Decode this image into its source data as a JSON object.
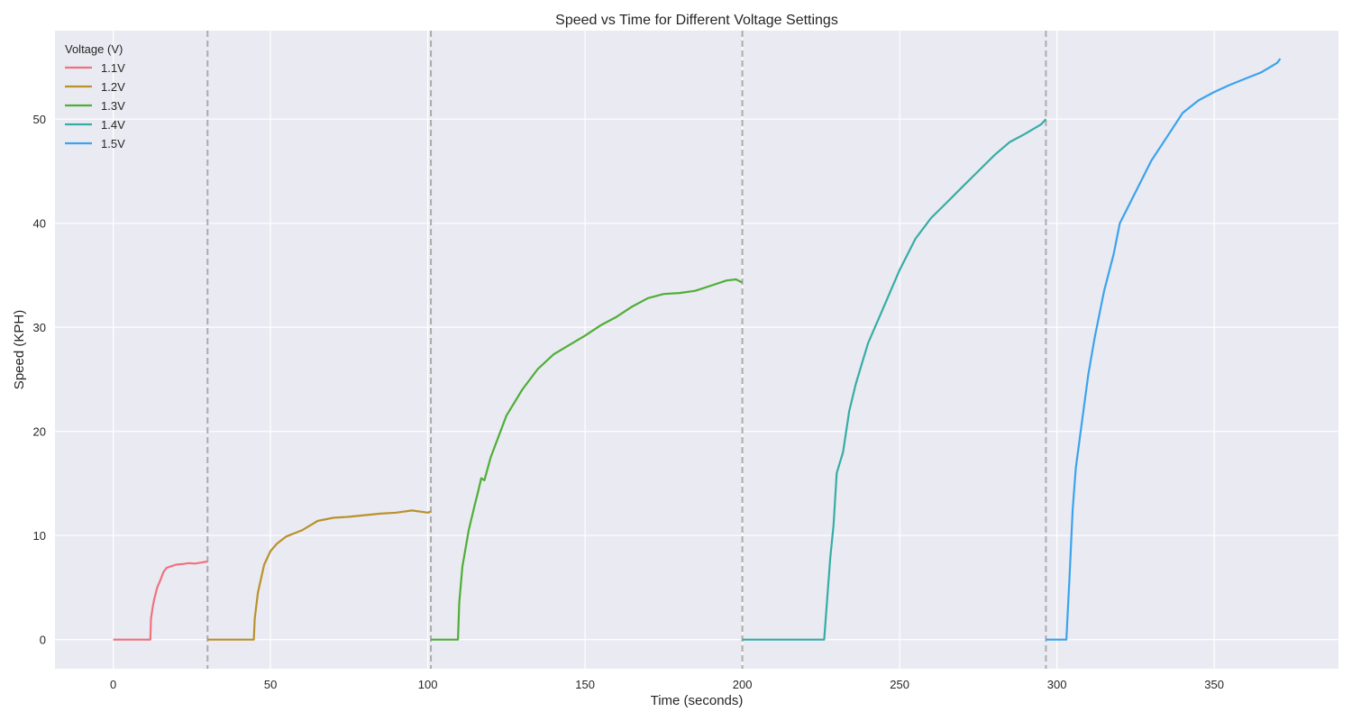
{
  "chart_data": {
    "type": "line",
    "title": "Speed vs Time for Different Voltage Settings",
    "xlabel": "Time (seconds)",
    "ylabel": "Speed (KPH)",
    "xlim": [
      -18.5,
      389.5
    ],
    "ylim": [
      -2.8,
      58.5
    ],
    "xticks": [
      0,
      50,
      100,
      150,
      200,
      250,
      300,
      350
    ],
    "yticks": [
      0,
      10,
      20,
      30,
      40,
      50
    ],
    "grid": true,
    "background": "#eaeaf2",
    "legend": {
      "title": "Voltage (V)",
      "placement": "top-left"
    },
    "boundaries": [
      30,
      101,
      200,
      296.5
    ],
    "series": [
      {
        "name": "1.1V",
        "color": "#f0727e",
        "x": [
          0,
          5,
          11.8,
          12,
          12.5,
          13,
          14,
          15,
          16,
          17,
          18,
          19,
          20,
          22,
          24,
          26,
          28,
          30
        ],
        "y": [
          0,
          0,
          0,
          2.0,
          3.0,
          3.8,
          5.0,
          5.7,
          6.5,
          6.9,
          7.0,
          7.1,
          7.2,
          7.25,
          7.35,
          7.3,
          7.4,
          7.5
        ]
      },
      {
        "name": "1.2V",
        "color": "#b9922c",
        "x": [
          30,
          40,
          44.7,
          45,
          46,
          48,
          50,
          52,
          55,
          60,
          65,
          70,
          75,
          80,
          85,
          90,
          95,
          100,
          101
        ],
        "y": [
          0,
          0,
          0,
          2.0,
          4.5,
          7.2,
          8.5,
          9.2,
          9.9,
          10.5,
          11.4,
          11.7,
          11.8,
          11.95,
          12.1,
          12.2,
          12.4,
          12.2,
          12.3
        ]
      },
      {
        "name": "1.3V",
        "color": "#4fae37",
        "x": [
          101,
          105,
          109.6,
          110,
          111,
          113,
          115,
          116,
          117,
          118,
          120,
          125,
          130,
          135,
          140,
          145,
          150,
          155,
          160,
          165,
          170,
          175,
          180,
          185,
          190,
          195,
          198,
          200
        ],
        "y": [
          0,
          0,
          0,
          3.5,
          7.0,
          10.5,
          13.0,
          14.2,
          15.5,
          15.3,
          17.5,
          21.5,
          24.0,
          26.0,
          27.4,
          28.3,
          29.2,
          30.2,
          31.0,
          32.0,
          32.8,
          33.2,
          33.3,
          33.5,
          34.0,
          34.5,
          34.6,
          34.3
        ]
      },
      {
        "name": "1.4V",
        "color": "#36ada4",
        "x": [
          200,
          215,
          226,
          227,
          228,
          229,
          230,
          232,
          234,
          236,
          238,
          240,
          245,
          250,
          255,
          260,
          265,
          270,
          275,
          280,
          285,
          290,
          295,
          296.5
        ],
        "y": [
          0,
          0,
          0,
          4.0,
          8.0,
          11.0,
          16.0,
          18.0,
          22.0,
          24.5,
          26.5,
          28.5,
          32.0,
          35.5,
          38.5,
          40.5,
          42.0,
          43.5,
          45.0,
          46.5,
          47.8,
          48.6,
          49.5,
          50.0
        ]
      },
      {
        "name": "1.5V",
        "color": "#3ba3ec",
        "x": [
          296.5,
          300,
          303,
          304,
          305,
          306,
          308,
          310,
          312,
          315,
          318,
          320,
          325,
          330,
          335,
          340,
          345,
          350,
          355,
          360,
          365,
          370,
          371
        ],
        "y": [
          0,
          0,
          0,
          6.0,
          12.5,
          16.5,
          21.0,
          25.5,
          29.0,
          33.5,
          37.0,
          40.0,
          43.0,
          46.0,
          48.3,
          50.6,
          51.8,
          52.6,
          53.3,
          53.9,
          54.5,
          55.4,
          55.8
        ]
      }
    ]
  }
}
